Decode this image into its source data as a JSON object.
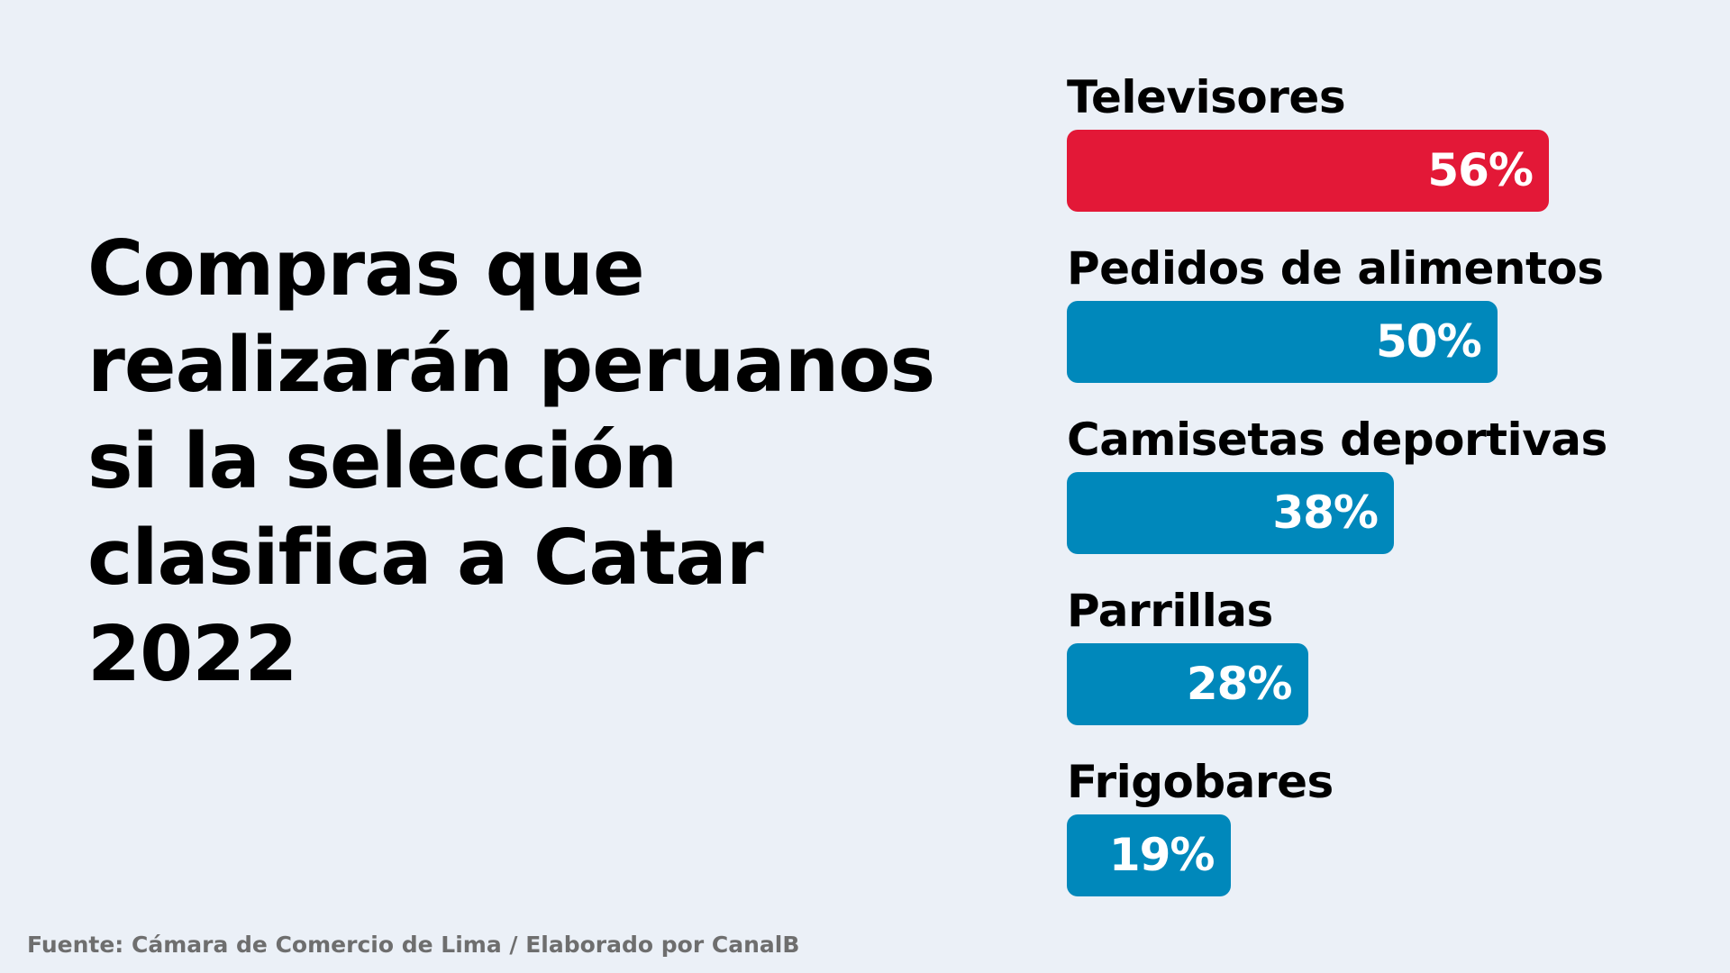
{
  "title_lines": [
    "Compras que",
    "realizarán peruanos",
    "si la selección",
    "clasifica a Catar",
    "2022"
  ],
  "source": "Fuente: Cámara de Comercio de Lima / Elaborado por CanalB",
  "colors": {
    "background": "#ebf0f7",
    "highlight": "#e31837",
    "bar": "#0088bb",
    "text": "#000000",
    "source_text": "#6e6e6e"
  },
  "chart_data": {
    "type": "bar",
    "orientation": "horizontal",
    "categories": [
      "Televisores",
      "Pedidos de alimentos",
      "Camisetas deportivas",
      "Parrillas",
      "Frigobares"
    ],
    "values": [
      56,
      50,
      38,
      28,
      19
    ],
    "value_labels": [
      "56%",
      "50%",
      "38%",
      "28%",
      "19%"
    ],
    "unit": "%",
    "highlight_category": "Televisores",
    "grid": false,
    "legend": "none"
  }
}
